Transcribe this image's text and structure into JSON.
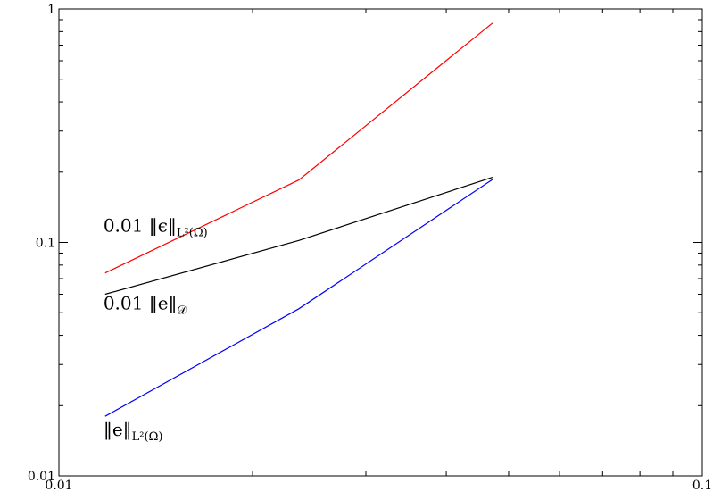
{
  "chart_data": {
    "type": "line",
    "title": "",
    "xlabel": "",
    "ylabel": "",
    "xscale": "log",
    "yscale": "log",
    "xlim": [
      0.01,
      0.1
    ],
    "ylim": [
      0.01,
      1
    ],
    "grid": false,
    "legend": "none",
    "x_ticks": [
      {
        "value": 0.01,
        "label": "0.01"
      },
      {
        "value": 0.1,
        "label": "0.1"
      }
    ],
    "y_ticks": [
      {
        "value": 0.01,
        "label": "0.01"
      },
      {
        "value": 0.1,
        "label": "0.1"
      },
      {
        "value": 1,
        "label": "1"
      }
    ],
    "series": [
      {
        "color": "#ff0000",
        "x": [
          0.0118,
          0.0236,
          0.0472
        ],
        "y": [
          0.074,
          0.185,
          0.87
        ]
      },
      {
        "color": "#000000",
        "x": [
          0.0118,
          0.0236,
          0.0472
        ],
        "y": [
          0.06,
          0.102,
          0.19
        ]
      },
      {
        "color": "#0000ff",
        "x": [
          0.0118,
          0.0236,
          0.0472
        ],
        "y": [
          0.018,
          0.052,
          0.186
        ]
      }
    ],
    "annotations": [
      {
        "main": "0.01 ‖ϵ‖",
        "sub": "L²(Ω)",
        "x": 0.0118,
        "y": 0.118
      },
      {
        "main": "0.01 ‖e‖",
        "sub": "𝒟",
        "x": 0.0118,
        "y": 0.055
      },
      {
        "main": "‖e‖",
        "sub": "L²(Ω)",
        "x": 0.0118,
        "y": 0.0158
      }
    ]
  }
}
